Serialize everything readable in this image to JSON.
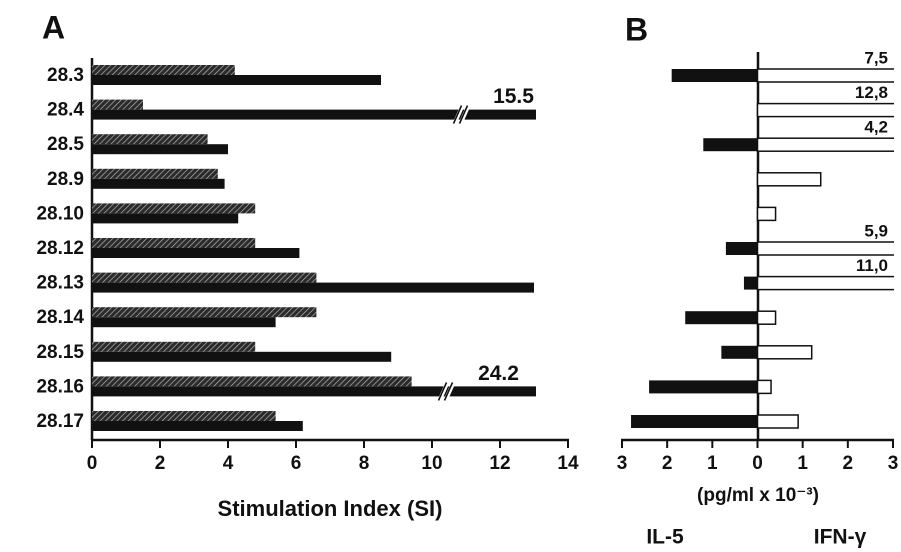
{
  "chart_data": [
    {
      "type": "bar",
      "orientation": "horizontal",
      "title": "A",
      "xlabel": "Stimulation Index (SI)",
      "categories": [
        "28.3",
        "28.4",
        "28.5",
        "28.9",
        "28.10",
        "28.12",
        "28.13",
        "28.14",
        "28.15",
        "28.16",
        "28.17"
      ],
      "series": [
        {
          "color": "#2b2b2b",
          "pattern": "hatch",
          "values": [
            4.2,
            1.5,
            3.4,
            3.7,
            4.8,
            4.8,
            6.6,
            6.6,
            4.8,
            9.4,
            5.4
          ]
        },
        {
          "color": "#111111",
          "values": [
            8.5,
            15.5,
            4.0,
            3.9,
            4.3,
            6.1,
            13.0,
            5.4,
            8.8,
            24.2,
            6.2
          ]
        }
      ],
      "xlim": [
        0,
        14
      ],
      "xticks": [
        0,
        2,
        4,
        6,
        8,
        10,
        12,
        14
      ],
      "axis_break": true
    },
    {
      "type": "diverging_bar",
      "orientation": "horizontal",
      "title": "B",
      "xlabel": "(pg/ml x 10⁻³)",
      "series": [
        {
          "name": "IL-5",
          "color": "#111111",
          "values": [
            -1.9,
            0,
            -1.2,
            0,
            0,
            -0.7,
            -0.3,
            -1.6,
            -0.8,
            -2.4,
            -2.8
          ]
        },
        {
          "name": "IFN-γ",
          "color": "#ffffff",
          "values": [
            7.5,
            12.8,
            4.2,
            1.4,
            0.4,
            5.9,
            11.0,
            0.4,
            1.2,
            0.3,
            0.9
          ],
          "value_labels": [
            "7,5",
            "12,8",
            "4,2",
            null,
            null,
            "5,9",
            "11,0",
            null,
            null,
            null,
            null
          ]
        }
      ],
      "xlim": [
        -3,
        3
      ],
      "xticks": [
        {
          "value": -3,
          "label": "3"
        },
        {
          "value": -2,
          "label": "2"
        },
        {
          "value": -1,
          "label": "1"
        },
        0,
        1,
        2,
        3
      ]
    }
  ]
}
